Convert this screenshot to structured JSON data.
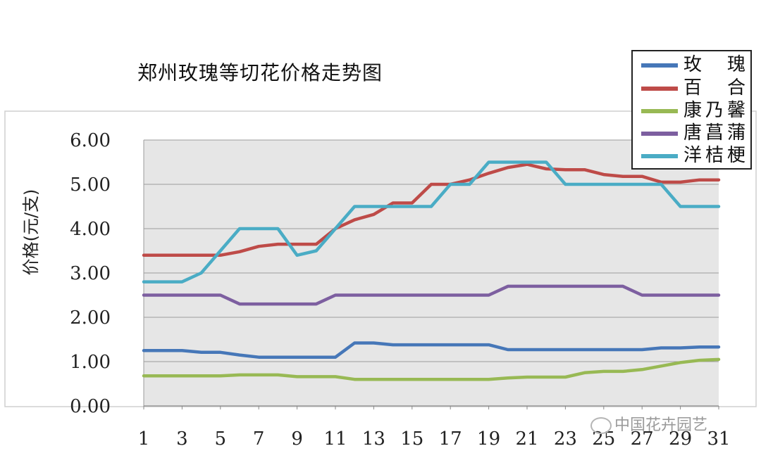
{
  "chart_data": {
    "type": "line",
    "title": "郑州玫瑰等切花价格走势图",
    "ylabel": "价格(元/支)",
    "xlabel": "",
    "ylim": [
      0,
      6
    ],
    "yticks": [
      "0.00",
      "1.00",
      "2.00",
      "3.00",
      "4.00",
      "5.00",
      "6.00"
    ],
    "x": [
      1,
      2,
      3,
      4,
      5,
      6,
      7,
      8,
      9,
      10,
      11,
      12,
      13,
      14,
      15,
      16,
      17,
      18,
      19,
      20,
      21,
      22,
      23,
      24,
      25,
      26,
      27,
      28,
      29,
      30,
      31
    ],
    "xticks": [
      "1",
      "3",
      "5",
      "7",
      "9",
      "11",
      "13",
      "15",
      "17",
      "19",
      "21",
      "23",
      "25",
      "27",
      "29",
      "31"
    ],
    "grid": true,
    "legend_position": "top-right",
    "series": [
      {
        "name": "玫　瑰",
        "color": "#4677b8",
        "values": [
          1.25,
          1.25,
          1.25,
          1.21,
          1.21,
          1.15,
          1.1,
          1.1,
          1.1,
          1.1,
          1.1,
          1.42,
          1.42,
          1.38,
          1.38,
          1.38,
          1.38,
          1.38,
          1.38,
          1.27,
          1.27,
          1.27,
          1.27,
          1.27,
          1.27,
          1.27,
          1.27,
          1.31,
          1.31,
          1.33,
          1.33
        ]
      },
      {
        "name": "百　合",
        "color": "#be4b48",
        "values": [
          3.4,
          3.4,
          3.4,
          3.4,
          3.4,
          3.48,
          3.6,
          3.65,
          3.65,
          3.65,
          4.0,
          4.2,
          4.32,
          4.58,
          4.58,
          5.0,
          5.0,
          5.1,
          5.25,
          5.38,
          5.45,
          5.35,
          5.33,
          5.33,
          5.22,
          5.18,
          5.18,
          5.05,
          5.05,
          5.1,
          5.1
        ]
      },
      {
        "name": "康乃馨",
        "color": "#98b954",
        "values": [
          0.68,
          0.68,
          0.68,
          0.68,
          0.68,
          0.7,
          0.7,
          0.7,
          0.66,
          0.66,
          0.66,
          0.6,
          0.6,
          0.6,
          0.6,
          0.6,
          0.6,
          0.6,
          0.6,
          0.63,
          0.65,
          0.65,
          0.65,
          0.75,
          0.78,
          0.78,
          0.82,
          0.9,
          0.98,
          1.03,
          1.05
        ]
      },
      {
        "name": "唐菖蒲",
        "color": "#7d5fa0",
        "values": [
          2.5,
          2.5,
          2.5,
          2.5,
          2.5,
          2.3,
          2.3,
          2.3,
          2.3,
          2.3,
          2.5,
          2.5,
          2.5,
          2.5,
          2.5,
          2.5,
          2.5,
          2.5,
          2.5,
          2.7,
          2.7,
          2.7,
          2.7,
          2.7,
          2.7,
          2.7,
          2.5,
          2.5,
          2.5,
          2.5,
          2.5
        ]
      },
      {
        "name": "洋桔梗",
        "color": "#4aacc5",
        "values": [
          2.8,
          2.8,
          2.8,
          3.0,
          3.5,
          4.0,
          4.0,
          4.0,
          3.4,
          3.5,
          4.0,
          4.5,
          4.5,
          4.5,
          4.5,
          4.5,
          5.0,
          5.0,
          5.5,
          5.5,
          5.5,
          5.5,
          5.0,
          5.0,
          5.0,
          5.0,
          5.0,
          5.0,
          4.5,
          4.5,
          4.5
        ]
      }
    ]
  },
  "watermark": {
    "text": "中国花卉园艺"
  }
}
